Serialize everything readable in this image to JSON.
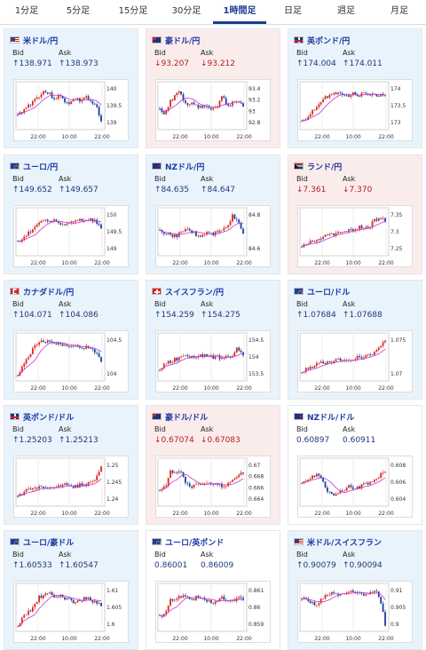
{
  "tabs": [
    "1分足",
    "5分足",
    "15分足",
    "30分足",
    "1時間足",
    "日足",
    "週足",
    "月足"
  ],
  "active_tab": 4,
  "labels": {
    "bid": "Bid",
    "ask": "Ask"
  },
  "cards": [
    {
      "pair": "米ドル/円",
      "flag": "us",
      "dir": "up",
      "bid": "138.971",
      "ask": "138.973",
      "yticks": [
        "140",
        "139.5",
        "139"
      ],
      "xticks": [
        "22:00",
        "10:00",
        "22:00"
      ]
    },
    {
      "pair": "豪ドル/円",
      "flag": "au",
      "dir": "down",
      "bid": "93.207",
      "ask": "93.212",
      "yticks": [
        "93.4",
        "93.2",
        "93",
        "92.8"
      ],
      "xticks": [
        "22:00",
        "10:00",
        "22:00"
      ]
    },
    {
      "pair": "英ポンド/円",
      "flag": "gb",
      "dir": "up",
      "bid": "174.004",
      "ask": "174.011",
      "yticks": [
        "174",
        "173.5",
        "173"
      ],
      "xticks": [
        "22:00",
        "10:00",
        "22:00"
      ]
    },
    {
      "pair": "ユーロ/円",
      "flag": "eu",
      "dir": "up",
      "bid": "149.652",
      "ask": "149.657",
      "yticks": [
        "150",
        "149.5",
        "149"
      ],
      "xticks": [
        "22:00",
        "10:00",
        "22:00"
      ]
    },
    {
      "pair": "NZドル/円",
      "flag": "nz",
      "dir": "up",
      "bid": "84.635",
      "ask": "84.647",
      "yticks": [
        "84.8",
        "84.6"
      ],
      "xticks": [
        "22:00",
        "10:00",
        "22:00"
      ]
    },
    {
      "pair": "ランド/円",
      "flag": "za",
      "dir": "down",
      "bid": "7.361",
      "ask": "7.370",
      "yticks": [
        "7.35",
        "7.3",
        "7.25"
      ],
      "xticks": [
        "22:00",
        "10:00",
        "22:00"
      ]
    },
    {
      "pair": "カナダドル/円",
      "flag": "ca",
      "dir": "up",
      "bid": "104.071",
      "ask": "104.086",
      "yticks": [
        "104.5",
        "104"
      ],
      "xticks": [
        "22:00",
        "10:00",
        "22:00"
      ]
    },
    {
      "pair": "スイスフラン/円",
      "flag": "ch",
      "dir": "up",
      "bid": "154.259",
      "ask": "154.275",
      "yticks": [
        "154.5",
        "154",
        "153.5"
      ],
      "xticks": [
        "22:00",
        "10:00",
        "22:00"
      ]
    },
    {
      "pair": "ユーロ/ドル",
      "flag": "eu",
      "dir": "up",
      "bid": "1.07684",
      "ask": "1.07688",
      "yticks": [
        "1.075",
        "1.07"
      ],
      "xticks": [
        "22:00",
        "10:00",
        "22:00"
      ]
    },
    {
      "pair": "英ポンド/ドル",
      "flag": "gb",
      "dir": "up",
      "bid": "1.25203",
      "ask": "1.25213",
      "yticks": [
        "1.25",
        "1.245",
        "1.24"
      ],
      "xticks": [
        "22:00",
        "10:00",
        "22:00"
      ]
    },
    {
      "pair": "豪ドル/ドル",
      "flag": "au",
      "dir": "down",
      "bid": "0.67074",
      "ask": "0.67083",
      "yticks": [
        "0.67",
        "0.668",
        "0.666",
        "0.664"
      ],
      "xticks": [
        "22:00",
        "10:00",
        "22:00"
      ]
    },
    {
      "pair": "NZドル/ドル",
      "flag": "nz",
      "dir": "flat",
      "bid": "0.60897",
      "ask": "0.60911",
      "yticks": [
        "0.608",
        "0.606",
        "0.604"
      ],
      "xticks": [
        "22:00",
        "10:00",
        "22:00"
      ]
    },
    {
      "pair": "ユーロ/豪ドル",
      "flag": "eu",
      "dir": "up",
      "bid": "1.60533",
      "ask": "1.60547",
      "yticks": [
        "1.61",
        "1.605",
        "1.6"
      ],
      "xticks": [
        "22:00",
        "10:00",
        "22:00"
      ]
    },
    {
      "pair": "ユーロ/英ポンド",
      "flag": "eu",
      "dir": "flat",
      "bid": "0.86001",
      "ask": "0.86009",
      "yticks": [
        "0.861",
        "0.86",
        "0.859"
      ],
      "xticks": [
        "22:00",
        "10:00",
        "22:00"
      ]
    },
    {
      "pair": "米ドル/スイスフラン",
      "flag": "us",
      "dir": "up",
      "bid": "0.90079",
      "ask": "0.90094",
      "yticks": [
        "0.91",
        "0.905",
        "0.9"
      ],
      "xticks": [
        "22:00",
        "10:00",
        "22:00"
      ]
    }
  ],
  "colors": {
    "up_arrow": "#1d3a7a",
    "down_arrow": "#b31d1d",
    "candle_up": "#e0261f",
    "candle_down": "#1c3f9b",
    "ma": "#c03ad0",
    "ma2": "#3aa6c0"
  }
}
